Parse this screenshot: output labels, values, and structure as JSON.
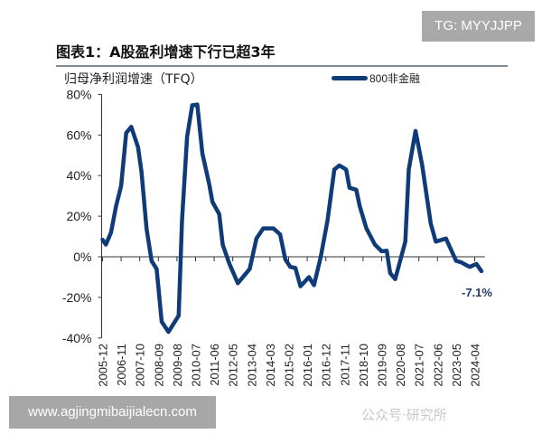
{
  "watermark_top": "TG: MYYJJPP",
  "watermark_bottom": "www.agjingmibaijialecn.com",
  "watermark_mid": "公众号·研究所",
  "chart_data": {
    "type": "line",
    "title": "图表1：A股盈利增速下行已超3年",
    "ylabel": "归母净利润增速（TFQ）",
    "ylim": [
      -40,
      80
    ],
    "yticks": [
      -40,
      -20,
      0,
      20,
      40,
      60,
      80
    ],
    "ytick_labels": [
      "-40%",
      "-20%",
      "0%",
      "20%",
      "40%",
      "60%",
      "80%"
    ],
    "xtick_labels": [
      "2005-12",
      "2006-11",
      "2007-10",
      "2008-09",
      "2009-08",
      "2010-07",
      "2011-06",
      "2012-05",
      "2013-04",
      "2014-03",
      "2015-02",
      "2016-01",
      "2016-12",
      "2017-11",
      "2018-10",
      "2019-09",
      "2020-08",
      "2021-07",
      "2022-06",
      "2023-05",
      "2024-04"
    ],
    "legend_position": "top-right",
    "grid": false,
    "annotation": "-7.1%",
    "line_color": "#0f3b78",
    "series": [
      {
        "name": "800非金融",
        "x": [
          "2005-12",
          "2006-02",
          "2006-05",
          "2006-08",
          "2006-11",
          "2007-02",
          "2007-05",
          "2007-09",
          "2007-11",
          "2008-02",
          "2008-05",
          "2008-08",
          "2008-11",
          "2009-03",
          "2009-09",
          "2009-11",
          "2010-02",
          "2010-05",
          "2010-08",
          "2010-11",
          "2011-03",
          "2011-05",
          "2011-09",
          "2011-11",
          "2012-03",
          "2012-08",
          "2013-03",
          "2013-07",
          "2013-11",
          "2014-05",
          "2014-09",
          "2014-12",
          "2015-03",
          "2015-06",
          "2015-09",
          "2016-02",
          "2016-05",
          "2016-09",
          "2017-01",
          "2017-05",
          "2017-08",
          "2017-12",
          "2018-02",
          "2018-06",
          "2018-08",
          "2018-12",
          "2019-05",
          "2019-09",
          "2019-12",
          "2020-02",
          "2020-05",
          "2020-11",
          "2021-01",
          "2021-05",
          "2021-09",
          "2022-02",
          "2022-05",
          "2022-11",
          "2023-05",
          "2023-08",
          "2024-01",
          "2024-05",
          "2024-08"
        ],
        "values": [
          8.4,
          6,
          12,
          25,
          35,
          61,
          64,
          54,
          42,
          14,
          -2,
          -6,
          -32,
          -37,
          -29,
          18,
          59,
          74.6,
          75,
          51,
          36,
          27,
          21,
          6,
          -3.5,
          -13,
          -6,
          9,
          14,
          14,
          11,
          -1.2,
          -5,
          -5.5,
          -14.5,
          -10,
          -14,
          0,
          18,
          43,
          45,
          43,
          34,
          33,
          25,
          14,
          6,
          2.7,
          3,
          -8,
          -11,
          7.5,
          43,
          62,
          45,
          16.5,
          7.5,
          9,
          -2,
          -2.7,
          -5,
          -3.5,
          -7.1
        ]
      }
    ]
  }
}
